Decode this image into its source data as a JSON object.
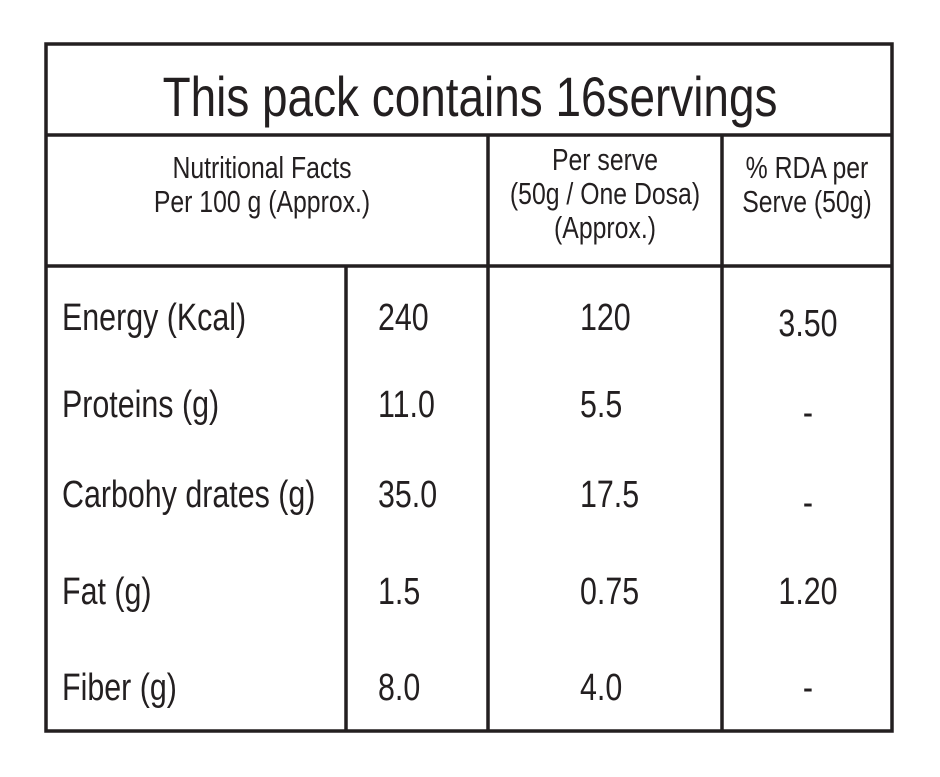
{
  "title": "This pack contains 16servings",
  "header": {
    "nutrition": [
      "Nutritional Facts",
      "Per 100 g (Approx.)"
    ],
    "per_serve": [
      "Per serve",
      "(50g / One Dosa)",
      "(Approx.)"
    ],
    "rda": [
      "% RDA per",
      "Serve (50g)"
    ]
  },
  "table": {
    "rows": [
      [
        "Energy (Kcal)",
        "240",
        "120",
        "3.50"
      ],
      [
        "Proteins (g)",
        "11.0",
        "5.5",
        "-"
      ],
      [
        "Carbohy drates (g)",
        "35.0",
        "17.5",
        "-"
      ],
      [
        "Fat (g)",
        "1.5",
        "0.75",
        "1.20"
      ],
      [
        "Fiber (g)",
        "8.0",
        "4.0",
        "-"
      ]
    ]
  }
}
